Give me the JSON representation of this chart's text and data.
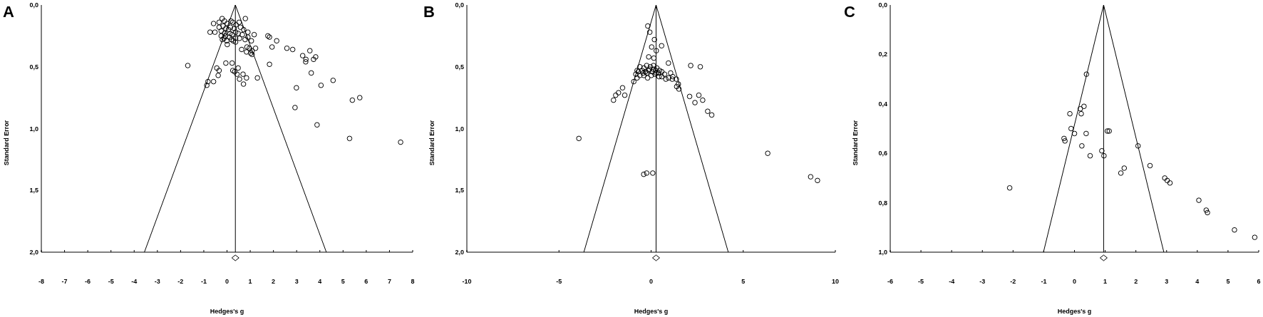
{
  "chart_data": [
    {
      "type": "scatter",
      "title": "A",
      "xlabel": "Hedges's g",
      "ylabel": "Standard Error",
      "xlim": [
        -8,
        8
      ],
      "ylim": [
        2,
        0
      ],
      "xticks": [
        -8,
        -7,
        -6,
        -5,
        -4,
        -3,
        -2,
        -1,
        0,
        1,
        2,
        3,
        4,
        5,
        6,
        7,
        8
      ],
      "yticks": [
        {
          "value": 0,
          "label": "0,0"
        },
        {
          "value": 0.5,
          "label": "0,5"
        },
        {
          "value": 1,
          "label": "1,0"
        },
        {
          "value": 1.5,
          "label": "1,5"
        },
        {
          "value": 2,
          "label": "2,0"
        }
      ],
      "ref_lines": [
        {
          "axis": "x",
          "value": 0.36,
          "color": "#000000"
        }
      ],
      "series": [
        {
          "color": "#000000",
          "marker": "circle",
          "x": [
            -1.69,
            -0.58,
            -0.21,
            0.79,
            -0.73,
            -0.52,
            -0.34,
            -0.17,
            0.01,
            0.25,
            0.52,
            -0.25,
            -0.11,
            0.07,
            0.22,
            0.37,
            -0.01,
            0.19,
            0.37,
            -0.13,
            0.01,
            0.37,
            0.72,
            0.9,
            0.66,
            1.17,
            1.05,
            0.9,
            1.76,
            1.83,
            2.14,
            1.94,
            2.58,
            2.83,
            3.57,
            3.26,
            3.4,
            3.39,
            3.73,
            3.82,
            0.63,
            0.86,
            0.84,
            1.02,
            1.23,
            1.08,
            1.83,
            3.63,
            4.57,
            4.05,
            2.99,
            5.4,
            5.72,
            2.93,
            3.88,
            5.28,
            7.48,
            -0.05,
            0.22,
            0.25,
            0.33,
            0.43,
            0.69,
            0.54,
            0.84,
            0.71,
            1.31,
            -0.44,
            -0.34,
            -0.38,
            -0.58,
            -0.82,
            -0.87,
            0.48,
            -0.34,
            -0.11,
            0.17,
            0.39,
            0.58,
            -0.25,
            -0.05,
            0.15,
            0.31,
            0.48,
            -0.08,
            0.11,
            0.27,
            -0.2,
            0.13,
            0.78,
            0.54,
            0.96,
            1.08
          ],
          "values": [
            0.49,
            0.15,
            0.11,
            0.11,
            0.22,
            0.22,
            0.18,
            0.17,
            0.15,
            0.14,
            0.14,
            0.25,
            0.23,
            0.2,
            0.24,
            0.22,
            0.29,
            0.28,
            0.27,
            0.27,
            0.32,
            0.3,
            0.2,
            0.22,
            0.24,
            0.24,
            0.29,
            0.26,
            0.25,
            0.26,
            0.29,
            0.34,
            0.35,
            0.36,
            0.37,
            0.41,
            0.44,
            0.46,
            0.44,
            0.42,
            0.36,
            0.34,
            0.38,
            0.39,
            0.35,
            0.4,
            0.48,
            0.55,
            0.61,
            0.65,
            0.67,
            0.77,
            0.75,
            0.83,
            0.97,
            1.08,
            1.11,
            0.47,
            0.47,
            0.53,
            0.54,
            0.56,
            0.56,
            0.6,
            0.59,
            0.64,
            0.59,
            0.51,
            0.53,
            0.57,
            0.62,
            0.62,
            0.65,
            0.51,
            0.14,
            0.13,
            0.13,
            0.16,
            0.18,
            0.21,
            0.19,
            0.18,
            0.19,
            0.23,
            0.25,
            0.26,
            0.29,
            0.28,
            0.23,
            0.28,
            0.27,
            0.35,
            0.37
          ]
        },
        {
          "type": "line",
          "color": "#000000",
          "marker": "none",
          "x": [
            -3.56,
            0.36,
            4.28
          ],
          "values": [
            2,
            0,
            2
          ]
        }
      ]
    },
    {
      "type": "scatter",
      "title": "B",
      "xlabel": "Hedges's g",
      "ylabel": "Standard Error",
      "xlim": [
        -10,
        10
      ],
      "ylim": [
        2,
        0
      ],
      "xticks": [
        -10,
        -5,
        0,
        5,
        10
      ],
      "yticks": [
        {
          "value": 0,
          "label": "0,0"
        },
        {
          "value": 0.5,
          "label": "0,5"
        },
        {
          "value": 1,
          "label": "1,0"
        },
        {
          "value": 1.5,
          "label": "1,5"
        },
        {
          "value": 2,
          "label": "2,0"
        }
      ],
      "ref_lines": [
        {
          "axis": "x",
          "value": 0.27,
          "color": "#000000"
        }
      ],
      "series": [
        {
          "color": "#000000",
          "marker": "circle",
          "x": [
            -0.18,
            -0.07,
            0.18,
            0.57,
            0.03,
            0.28,
            -0.13,
            0.15,
            0.94,
            2.15,
            2.67,
            1.06,
            1.18,
            1.37,
            1.48,
            1.39,
            1.51,
            0.8,
            -0.94,
            -0.76,
            -1.55,
            -1.43,
            -1.77,
            -1.92,
            -2.04,
            2.09,
            2.59,
            2.38,
            2.8,
            3.07,
            3.29,
            -3.92,
            6.33,
            -0.4,
            -0.24,
            0.09,
            8.66,
            9.03,
            -0.61,
            -0.39,
            -0.24,
            -0.04,
            0.13,
            0.31,
            0.46,
            0.58,
            0.73,
            -0.69,
            -0.49,
            -0.31,
            -0.13,
            0.06,
            0.25,
            0.4,
            -0.83,
            -0.61,
            -0.39,
            -0.19,
            0.01,
            0.21,
            0.43,
            -0.76,
            0.13,
            -0.09,
            -0.24,
            -0.43,
            0.28,
            0.58,
            0.95,
            1.15
          ],
          "values": [
            0.17,
            0.22,
            0.28,
            0.33,
            0.34,
            0.37,
            0.42,
            0.43,
            0.47,
            0.49,
            0.5,
            0.55,
            0.58,
            0.6,
            0.64,
            0.66,
            0.68,
            0.6,
            0.62,
            0.59,
            0.67,
            0.73,
            0.71,
            0.73,
            0.77,
            0.74,
            0.73,
            0.79,
            0.77,
            0.86,
            0.89,
            1.08,
            1.2,
            1.37,
            1.36,
            1.36,
            1.39,
            1.42,
            0.5,
            0.51,
            0.49,
            0.5,
            0.49,
            0.51,
            0.53,
            0.54,
            0.56,
            0.54,
            0.53,
            0.54,
            0.53,
            0.54,
            0.53,
            0.55,
            0.56,
            0.57,
            0.57,
            0.59,
            0.57,
            0.56,
            0.58,
            0.53,
            0.52,
            0.52,
            0.55,
            0.55,
            0.55,
            0.58,
            0.59,
            0.6
          ]
        },
        {
          "type": "line",
          "color": "#000000",
          "marker": "none",
          "x": [
            -3.65,
            0.27,
            4.19
          ],
          "values": [
            2,
            0,
            2
          ]
        }
      ]
    },
    {
      "type": "scatter",
      "title": "C",
      "xlabel": "Hedges's g",
      "ylabel": "Standard Error",
      "xlim": [
        -6,
        6
      ],
      "ylim": [
        1,
        0
      ],
      "xticks": [
        -6,
        -5,
        -4,
        -3,
        -2,
        -1,
        0,
        1,
        2,
        3,
        4,
        5,
        6
      ],
      "yticks": [
        {
          "value": 0,
          "label": "0,0"
        },
        {
          "value": 0.2,
          "label": "0,2"
        },
        {
          "value": 0.4,
          "label": "0,4"
        },
        {
          "value": 0.6,
          "label": "0,6"
        },
        {
          "value": 0.8,
          "label": "0,8"
        },
        {
          "value": 1,
          "label": "1,0"
        }
      ],
      "ref_lines": [
        {
          "axis": "x",
          "value": 0.95,
          "color": "#000000"
        }
      ],
      "series": [
        {
          "color": "#000000",
          "marker": "circle",
          "x": [
            0.39,
            -0.15,
            0.19,
            0.31,
            0.22,
            -0.11,
            0,
            0.38,
            -0.34,
            -0.31,
            1.07,
            1.13,
            0.24,
            0.51,
            0.89,
            0.96,
            2.07,
            2.46,
            1.62,
            1.51,
            2.94,
            3.02,
            3.11,
            4.05,
            4.29,
            4.33,
            5.21,
            5.87,
            -2.11
          ],
          "values": [
            0.28,
            0.44,
            0.42,
            0.41,
            0.44,
            0.5,
            0.52,
            0.52,
            0.54,
            0.55,
            0.51,
            0.51,
            0.57,
            0.61,
            0.59,
            0.61,
            0.57,
            0.65,
            0.66,
            0.68,
            0.7,
            0.71,
            0.72,
            0.79,
            0.83,
            0.84,
            0.91,
            0.94,
            0.74
          ]
        },
        {
          "type": "line",
          "color": "#000000",
          "marker": "none",
          "x": [
            -1.01,
            0.95,
            2.91
          ],
          "values": [
            1,
            0,
            1
          ]
        }
      ]
    }
  ]
}
